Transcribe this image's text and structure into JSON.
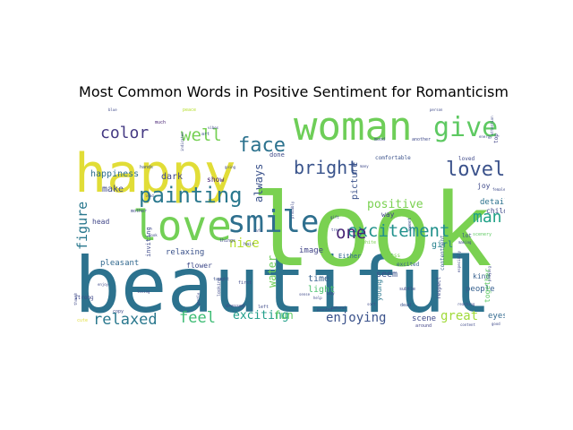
{
  "chart_data": {
    "type": "wordcloud",
    "title": "Most Common Words in Positive Sentiment for Romanticism",
    "colormap": "viridis",
    "background": "#ffffff",
    "words": [
      {
        "text": "beautiful",
        "weight": 1.0,
        "color": "#2c728e"
      },
      {
        "text": "look",
        "weight": 0.92,
        "color": "#7ad151"
      },
      {
        "text": "happy",
        "weight": 0.7,
        "color": "#e1dd37"
      },
      {
        "text": "woman",
        "weight": 0.55,
        "color": "#6ece58"
      },
      {
        "text": "love",
        "weight": 0.48,
        "color": "#73d056"
      },
      {
        "text": "smile",
        "weight": 0.38,
        "color": "#2e6f8e"
      },
      {
        "text": "give",
        "weight": 0.3,
        "color": "#5ec962"
      },
      {
        "text": "painting",
        "weight": 0.24,
        "color": "#2a788e"
      },
      {
        "text": "lovely",
        "weight": 0.22,
        "color": "#3b528b"
      },
      {
        "text": "face",
        "weight": 0.21,
        "color": "#2c728e"
      },
      {
        "text": "bright",
        "weight": 0.21,
        "color": "#3a548c"
      },
      {
        "text": "excitement",
        "weight": 0.2,
        "color": "#21918c"
      },
      {
        "text": "well",
        "weight": 0.2,
        "color": "#75d054"
      },
      {
        "text": "color",
        "weight": 0.19,
        "color": "#443983"
      },
      {
        "text": "one",
        "weight": 0.19,
        "color": "#482475"
      },
      {
        "text": "man",
        "weight": 0.18,
        "color": "#1fa187"
      },
      {
        "text": "relaxed",
        "weight": 0.17,
        "color": "#2a788e"
      },
      {
        "text": "feel",
        "weight": 0.17,
        "color": "#3dbc74"
      },
      {
        "text": "figure",
        "weight": 0.15,
        "color": "#2a788e"
      },
      {
        "text": "enjoying",
        "weight": 0.14,
        "color": "#3b528b"
      },
      {
        "text": "nice",
        "weight": 0.14,
        "color": "#b5de2b"
      },
      {
        "text": "great",
        "weight": 0.14,
        "color": "#a0da39"
      },
      {
        "text": "exciting",
        "weight": 0.13,
        "color": "#1f9e89"
      },
      {
        "text": "positive",
        "weight": 0.13,
        "color": "#7ad151"
      },
      {
        "text": "fun",
        "weight": 0.12,
        "color": "#5ec962"
      },
      {
        "text": "always",
        "weight": 0.12,
        "color": "#3b528b"
      },
      {
        "text": "water",
        "weight": 0.11,
        "color": "#6ece58"
      },
      {
        "text": "happiness",
        "weight": 0.1,
        "color": "#2e6e8e"
      },
      {
        "text": "make",
        "weight": 0.1,
        "color": "#3e4989"
      },
      {
        "text": "dark",
        "weight": 0.1,
        "color": "#404688"
      },
      {
        "text": "picture",
        "weight": 0.1,
        "color": "#3b528b"
      },
      {
        "text": "girl",
        "weight": 0.1,
        "color": "#26828e"
      },
      {
        "text": "time",
        "weight": 0.1,
        "color": "#355f8d"
      },
      {
        "text": "light",
        "weight": 0.1,
        "color": "#4ac16d"
      },
      {
        "text": "seem",
        "weight": 0.1,
        "color": "#3b528b"
      },
      {
        "text": "eyes",
        "weight": 0.09,
        "color": "#31688e"
      },
      {
        "text": "scene",
        "weight": 0.09,
        "color": "#3e4989"
      },
      {
        "text": "image",
        "weight": 0.09,
        "color": "#414487"
      },
      {
        "text": "relaxing",
        "weight": 0.09,
        "color": "#3b528b"
      },
      {
        "text": "pleasant",
        "weight": 0.09,
        "color": "#31688e"
      },
      {
        "text": "detail",
        "weight": 0.09,
        "color": "#2c728e"
      },
      {
        "text": "people",
        "weight": 0.09,
        "color": "#355f8d"
      },
      {
        "text": "head",
        "weight": 0.08,
        "color": "#404688"
      },
      {
        "text": "flower",
        "weight": 0.08,
        "color": "#3e4989"
      },
      {
        "text": "show",
        "weight": 0.08,
        "color": "#482475"
      },
      {
        "text": "way",
        "weight": 0.08,
        "color": "#414487"
      },
      {
        "text": "young",
        "weight": 0.08,
        "color": "#2a788e"
      },
      {
        "text": "kind",
        "weight": 0.08,
        "color": "#355f8d"
      },
      {
        "text": "child",
        "weight": 0.08,
        "color": "#3e4989"
      },
      {
        "text": "joy",
        "weight": 0.08,
        "color": "#3e4989"
      },
      {
        "text": "together",
        "weight": 0.08,
        "color": "#5ec962"
      },
      {
        "text": "Either",
        "weight": 0.07,
        "color": "#31688e"
      },
      {
        "text": "inviting",
        "weight": 0.07,
        "color": "#3e4989"
      },
      {
        "text": "done",
        "weight": 0.07,
        "color": "#3e4989"
      },
      {
        "text": "comfortable",
        "weight": 0.06,
        "color": "#3b528b"
      },
      {
        "text": "loved",
        "weight": 0.06,
        "color": "#3e4989"
      },
      {
        "text": "strong",
        "weight": 0.06,
        "color": "#3e4989"
      },
      {
        "text": "contentment",
        "weight": 0.06,
        "color": "#355f8d"
      },
      {
        "text": "respect",
        "weight": 0.06,
        "color": "#3e4989"
      },
      {
        "text": "dress",
        "weight": 0.06,
        "color": "#7ad151"
      },
      {
        "text": "excited",
        "weight": 0.06,
        "color": "#355f8d"
      },
      {
        "text": "lot",
        "weight": 0.06,
        "color": "#3b528b"
      },
      {
        "text": "hands",
        "weight": 0.05,
        "color": "#3b528b"
      },
      {
        "text": "mother",
        "weight": 0.05,
        "color": "#3e4989"
      },
      {
        "text": "much",
        "weight": 0.05,
        "color": "#482475"
      },
      {
        "text": "art",
        "weight": 0.05,
        "color": "#3b528b"
      },
      {
        "text": "top",
        "weight": 0.06,
        "color": "#414487"
      },
      {
        "text": "taught",
        "weight": 0.05,
        "color": "#3b528b"
      },
      {
        "text": "looking",
        "weight": 0.05,
        "color": "#3e4989"
      },
      {
        "text": "things",
        "weight": 0.05,
        "color": "#3e4989"
      },
      {
        "text": "subtle",
        "weight": 0.05,
        "color": "#3e4989"
      },
      {
        "text": "dead",
        "weight": 0.05,
        "color": "#3b528b"
      },
      {
        "text": "white",
        "weight": 0.05,
        "color": "#7ad151"
      },
      {
        "text": "sweet",
        "weight": 0.05,
        "color": "#3b528b"
      },
      {
        "text": "scenery",
        "weight": 0.05,
        "color": "#5ec962"
      },
      {
        "text": "dressed",
        "weight": 0.05,
        "color": "#404688"
      },
      {
        "text": "around",
        "weight": 0.05,
        "color": "#414487"
      },
      {
        "text": "copy",
        "weight": 0.05,
        "color": "#3e4989"
      },
      {
        "text": "hair",
        "weight": 0.04,
        "color": "#3e4989"
      },
      {
        "text": "first",
        "weight": 0.04,
        "color": "#3e4989"
      },
      {
        "text": "left",
        "weight": 0.04,
        "color": "#3e4989"
      },
      {
        "text": "mood",
        "weight": 0.04,
        "color": "#3e4989"
      },
      {
        "text": "another",
        "weight": 0.04,
        "color": "#3e4989"
      },
      {
        "text": "cute",
        "weight": 0.04,
        "color": "#e1dd37"
      },
      {
        "text": "peace",
        "weight": 0.04,
        "color": "#b5de2b"
      },
      {
        "text": "blue",
        "weight": 0.04,
        "color": "#3e4989"
      },
      {
        "text": "female",
        "weight": 0.04,
        "color": "#3e4989"
      },
      {
        "text": "person",
        "weight": 0.04,
        "color": "#3e4989"
      },
      {
        "text": "many",
        "weight": 0.04,
        "color": "#3e4989"
      },
      {
        "text": "gentle",
        "weight": 0.04,
        "color": "#3e4989"
      },
      {
        "text": "loving",
        "weight": 0.04,
        "color": "#3e4989"
      },
      {
        "text": "help",
        "weight": 0.04,
        "color": "#3e4989"
      },
      {
        "text": "sense",
        "weight": 0.04,
        "color": "#3e4989"
      },
      {
        "text": "lady",
        "weight": 0.04,
        "color": "#3e4989"
      },
      {
        "text": "natural",
        "weight": 0.04,
        "color": "#3e4989"
      },
      {
        "text": "tree",
        "weight": 0.04,
        "color": "#3e4989"
      },
      {
        "text": "gift",
        "weight": 0.04,
        "color": "#3e4989"
      },
      {
        "text": "book",
        "weight": 0.04,
        "color": "#3e4989"
      },
      {
        "text": "enjoy",
        "weight": 0.04,
        "color": "#3e4989"
      },
      {
        "text": "though",
        "weight": 0.04,
        "color": "#3e4989"
      },
      {
        "text": "playing",
        "weight": 0.04,
        "color": "#3e4989"
      },
      {
        "text": "making",
        "weight": 0.04,
        "color": "#3e4989"
      },
      {
        "text": "good",
        "weight": 0.04,
        "color": "#3e4989"
      },
      {
        "text": "content",
        "weight": 0.04,
        "color": "#3e4989"
      },
      {
        "text": "sort",
        "weight": 0.04,
        "color": "#3e4989"
      },
      {
        "text": "probably",
        "weight": 0.04,
        "color": "#3e4989"
      },
      {
        "text": "lead",
        "weight": 0.04,
        "color": "#3e4989"
      },
      {
        "text": "safe",
        "weight": 0.04,
        "color": "#3e4989"
      },
      {
        "text": "going",
        "weight": 0.04,
        "color": "#3e4989"
      },
      {
        "text": "vibes",
        "weight": 0.04,
        "color": "#3e4989"
      },
      {
        "text": "painted",
        "weight": 0.04,
        "color": "#3e4989"
      },
      {
        "text": "indicates",
        "weight": 0.04,
        "color": "#3e4989"
      },
      {
        "text": "attention",
        "weight": 0.04,
        "color": "#3e4989"
      },
      {
        "text": "energy",
        "weight": 0.04,
        "color": "#3e4989"
      },
      {
        "text": "especially",
        "weight": 0.04,
        "color": "#3e4989"
      },
      {
        "text": "reaching",
        "weight": 0.04,
        "color": "#3e4989"
      }
    ]
  }
}
